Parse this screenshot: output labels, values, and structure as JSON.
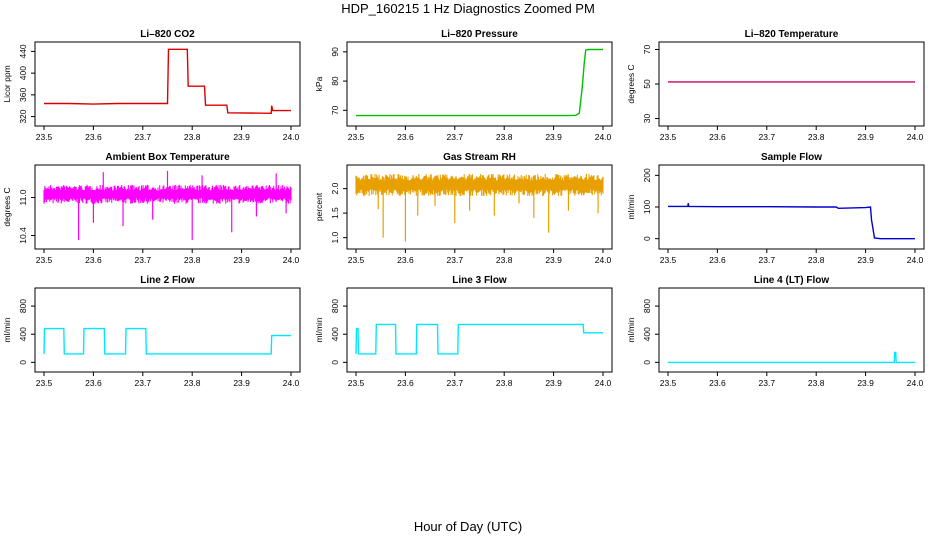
{
  "title": "HDP_160215  1 Hz Diagnostics Zoomed PM",
  "xlabel": "Hour of Day (UTC)",
  "chart_data": [
    {
      "type": "line",
      "title": "Li–820 CO2",
      "ylabel": "Licor ppm",
      "color": "#dd0000",
      "xlim": [
        23.5,
        24.0
      ],
      "xticks": [
        23.5,
        23.6,
        23.7,
        23.8,
        23.9,
        24.0
      ],
      "ylim": [
        310,
        450
      ],
      "yticks": [
        320,
        360,
        400,
        440
      ],
      "series": [
        {
          "x": [
            23.5,
            23.55,
            23.6,
            23.65,
            23.7,
            23.75,
            23.752,
            23.79,
            23.792,
            23.825,
            23.827,
            23.87,
            23.872,
            23.96,
            23.961,
            23.963,
            23.97,
            24.0
          ],
          "y": [
            344,
            344,
            343,
            344,
            344,
            344,
            444,
            444,
            376,
            376,
            341,
            341,
            327,
            326,
            340,
            331,
            331,
            331
          ]
        }
      ]
    },
    {
      "type": "line",
      "title": "Li–820 Pressure",
      "ylabel": "kPa",
      "color": "#00c000",
      "xlim": [
        23.5,
        24.0
      ],
      "xticks": [
        23.5,
        23.6,
        23.7,
        23.8,
        23.9,
        24.0
      ],
      "ylim": [
        66,
        92
      ],
      "yticks": [
        70,
        80,
        90
      ],
      "series": [
        {
          "x": [
            23.5,
            23.6,
            23.7,
            23.8,
            23.9,
            23.93,
            23.945,
            23.952,
            23.958,
            23.962,
            23.965,
            23.97,
            24.0
          ],
          "y": [
            68.2,
            68.2,
            68.2,
            68.2,
            68.2,
            68.2,
            68.3,
            69,
            78,
            86,
            90.6,
            90.8,
            90.8
          ]
        }
      ]
    },
    {
      "type": "line",
      "title": "Li–820 Temperature",
      "ylabel": "degrees C",
      "color": "#cc0066",
      "xlim": [
        23.5,
        24.0
      ],
      "xticks": [
        23.5,
        23.6,
        23.7,
        23.8,
        23.9,
        24.0
      ],
      "ylim": [
        28,
        72
      ],
      "yticks": [
        30,
        50,
        70
      ],
      "series": [
        {
          "x": [
            23.5,
            24.0
          ],
          "y": [
            51.2,
            51.2
          ]
        }
      ]
    },
    {
      "type": "line",
      "title": "Ambient Box Temperature",
      "ylabel": "degrees C",
      "color": "#ff00ff",
      "xlim": [
        23.5,
        24.0
      ],
      "xticks": [
        23.5,
        23.6,
        23.7,
        23.8,
        23.9,
        24.0
      ],
      "ylim": [
        10.25,
        11.45
      ],
      "yticks": [
        10.4,
        11.0
      ],
      "band": {
        "low": 10.9,
        "high": 11.2
      },
      "spikes": [
        {
          "x": 23.57,
          "y": 10.33
        },
        {
          "x": 23.6,
          "y": 10.6
        },
        {
          "x": 23.62,
          "y": 11.4
        },
        {
          "x": 23.66,
          "y": 10.55
        },
        {
          "x": 23.72,
          "y": 10.65
        },
        {
          "x": 23.75,
          "y": 11.42
        },
        {
          "x": 23.8,
          "y": 10.33
        },
        {
          "x": 23.82,
          "y": 11.35
        },
        {
          "x": 23.88,
          "y": 10.45
        },
        {
          "x": 23.93,
          "y": 10.7
        },
        {
          "x": 23.97,
          "y": 11.38
        },
        {
          "x": 23.99,
          "y": 10.75
        }
      ]
    },
    {
      "type": "line",
      "title": "Gas Stream RH",
      "ylabel": "percent",
      "color": "#e8a000",
      "xlim": [
        23.5,
        24.0
      ],
      "xticks": [
        23.5,
        23.6,
        23.7,
        23.8,
        23.9,
        24.0
      ],
      "ylim": [
        0.85,
        2.4
      ],
      "yticks": [
        1.0,
        1.5,
        2.0
      ],
      "band": {
        "low": 1.85,
        "high": 2.3
      },
      "spikes": [
        {
          "x": 23.545,
          "y": 1.58
        },
        {
          "x": 23.555,
          "y": 1.0
        },
        {
          "x": 23.6,
          "y": 0.92
        },
        {
          "x": 23.625,
          "y": 1.45
        },
        {
          "x": 23.66,
          "y": 1.65
        },
        {
          "x": 23.7,
          "y": 1.3
        },
        {
          "x": 23.73,
          "y": 1.55
        },
        {
          "x": 23.78,
          "y": 1.45
        },
        {
          "x": 23.83,
          "y": 1.7
        },
        {
          "x": 23.86,
          "y": 1.4
        },
        {
          "x": 23.89,
          "y": 1.1
        },
        {
          "x": 23.93,
          "y": 1.55
        },
        {
          "x": 23.99,
          "y": 1.5
        }
      ]
    },
    {
      "type": "line",
      "title": "Sample Flow",
      "ylabel": "ml/min",
      "color": "#0000cc",
      "xlim": [
        23.5,
        24.0
      ],
      "xticks": [
        23.5,
        23.6,
        23.7,
        23.8,
        23.9,
        24.0
      ],
      "ylim": [
        -20,
        220
      ],
      "yticks": [
        0,
        100,
        200
      ],
      "series": [
        {
          "x": [
            23.5,
            23.54,
            23.541,
            23.542,
            23.6,
            23.7,
            23.8,
            23.84,
            23.845,
            23.9,
            23.91,
            23.912,
            23.918,
            23.93,
            24.0
          ],
          "y": [
            102,
            102,
            112,
            102,
            101,
            101,
            100,
            100,
            96,
            98,
            100,
            60,
            2,
            0,
            0
          ]
        }
      ]
    },
    {
      "type": "line",
      "title": "Line 2 Flow",
      "ylabel": "ml/min",
      "color": "#00e8ff",
      "xlim": [
        23.5,
        24.0
      ],
      "xticks": [
        23.5,
        23.6,
        23.7,
        23.8,
        23.9,
        24.0
      ],
      "ylim": [
        -80,
        1000
      ],
      "yticks": [
        0,
        400,
        800
      ],
      "series": [
        {
          "x": [
            23.5,
            23.501,
            23.54,
            23.541,
            23.58,
            23.581,
            23.622,
            23.623,
            23.665,
            23.666,
            23.706,
            23.707,
            23.96,
            23.961,
            24.0
          ],
          "y": [
            120,
            480,
            480,
            120,
            120,
            480,
            480,
            120,
            120,
            480,
            480,
            120,
            120,
            380,
            380
          ]
        }
      ]
    },
    {
      "type": "line",
      "title": "Line 3 Flow",
      "ylabel": "ml/min",
      "color": "#00e8ff",
      "xlim": [
        23.5,
        24.0
      ],
      "xticks": [
        23.5,
        23.6,
        23.7,
        23.8,
        23.9,
        24.0
      ],
      "ylim": [
        -80,
        1000
      ],
      "yticks": [
        0,
        400,
        800
      ],
      "series": [
        {
          "x": [
            23.5,
            23.501,
            23.504,
            23.505,
            23.54,
            23.541,
            23.58,
            23.581,
            23.622,
            23.623,
            23.665,
            23.666,
            23.706,
            23.707,
            23.96,
            23.961,
            24.0
          ],
          "y": [
            120,
            480,
            480,
            120,
            120,
            540,
            540,
            120,
            120,
            540,
            540,
            120,
            120,
            540,
            540,
            420,
            420
          ]
        }
      ]
    },
    {
      "type": "line",
      "title": "Line 4 (LT) Flow",
      "ylabel": "ml/min",
      "color": "#00e8ff",
      "xlim": [
        23.5,
        24.0
      ],
      "xticks": [
        23.5,
        23.6,
        23.7,
        23.8,
        23.9,
        24.0
      ],
      "ylim": [
        -80,
        1000
      ],
      "yticks": [
        0,
        400,
        800
      ],
      "series": [
        {
          "x": [
            23.5,
            23.95,
            23.958,
            23.959,
            23.961,
            23.962,
            24.0
          ],
          "y": [
            0,
            0,
            0,
            140,
            140,
            0,
            0
          ]
        }
      ]
    }
  ]
}
